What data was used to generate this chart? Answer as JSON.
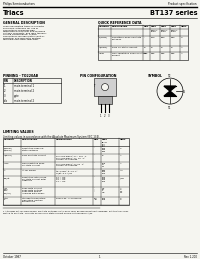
{
  "title_left": "Philips Semiconductors",
  "title_right": "Product specification",
  "subtitle_left": "Triacs",
  "subtitle_right": "BT137 series",
  "bg_color": "#f5f5f0",
  "text_color": "#000000",
  "sections": {
    "general_desc_title": "GENERAL DESCRIPTION",
    "general_desc_body": "Glass passivated triacs in a plastic\nenvelope, intended for use in\napplications requiring high\nbidirectional transient and blocking\nvoltage capability, and high thermal\ncycling performance. Typical\napplications include motor control,\nindustrial and domestic lighting\ndimming and static switching.",
    "quick_ref_title": "QUICK REFERENCE DATA",
    "pinning_title": "PINNING - TO220AB",
    "pin_config_title": "PIN CONFIGURATION",
    "symbol_title": "SYMBOL",
    "limiting_title": "LIMITING VALUES",
    "limiting_sub": "Limiting values in accordance with the Absolute Maximum System (IEC 134)."
  },
  "pinning_rows": [
    [
      "PIN",
      "DESCRIPTION"
    ],
    [
      "1",
      "main terminal 1"
    ],
    [
      "2",
      "main terminal 2"
    ],
    [
      "3",
      "gate"
    ],
    [
      "tab",
      "main terminal 2"
    ]
  ],
  "qr_variants": [
    "BT137-\n500G",
    "BT137-\n600G",
    "BT137-\n800G"
  ],
  "qr_rows": [
    [
      "V(DRM)",
      "Repetitive peak off-state\nvoltages",
      "-",
      "500",
      "600",
      "800",
      "V"
    ],
    [
      "IT(RMS)",
      "RMS on-state current",
      "8",
      "8",
      "8",
      "8",
      "A"
    ],
    [
      "ITSM",
      "Non-repetitive peak on-state\ncurrent",
      "875",
      "875",
      "875",
      "875",
      "A"
    ]
  ],
  "lv_rows": [
    [
      "V(DRM)\nV(RRM)",
      "Repetitive peak\noff-state voltages",
      "",
      "-",
      "500\n600\n800",
      "V"
    ],
    [
      "IT(RMS)",
      "RMS on-state current",
      "Full sine-wave; Tj = 130 °C\nFull sine-wave; T j= 25 °C; Current to\naverage",
      "-",
      "8",
      "A"
    ],
    [
      "ITSM",
      "Non-repetitive peak\non-state current",
      "Full sine-wave; T j= 25 °C;\nCurrent to average",
      "-",
      "875\n37\n21",
      "A\nA\nA/μs"
    ],
    [
      "I²t",
      "I²t for fusing",
      "tp = 10 ms; tj = 25 °C;\ndI/dt = 0.2 A/μs",
      "-",
      "380\n500\n100",
      "A²s"
    ],
    [
      "dIT/dt",
      "Repetitive rate of rise of\non-state current after\ntriggering",
      "IT/dt = 1.5 x IGT; t r = 2 μs;\nΔIH/Δt = 0.2 A/μs\nT1 = On\nT2 = On\nT3 = On\nT4 = On",
      "-",
      "100\n100\n100\n100",
      "A/μs"
    ],
    [
      "IGT",
      "Peak gate current",
      "",
      "-",
      "0.1",
      "A"
    ],
    [
      "VGT",
      "Peak gate voltage",
      "",
      "-",
      "10\n10\n10\n10",
      "V"
    ],
    [
      "PGT\nPG(AV)",
      "Peak gate power\nAverage gate power",
      "",
      "-\n-",
      "1\n0.5",
      "W\nW"
    ],
    [
      "Tstg\nTj",
      "Storage temperature\nOperating junction\ntemperature",
      "above 85 °C (in-period)",
      "-65\n-40",
      "150\n125",
      "°C\n°C"
    ]
  ],
  "footer_note": "1 Although not recommended, off-state voltages up to 800V may be applied without damage, but the triac may\nswitch to on-state. The rate of rise of on-state current should not exceed 6 A/μs.",
  "footer_left": "October 1987",
  "footer_center": "1",
  "footer_right": "Rev 1.200"
}
